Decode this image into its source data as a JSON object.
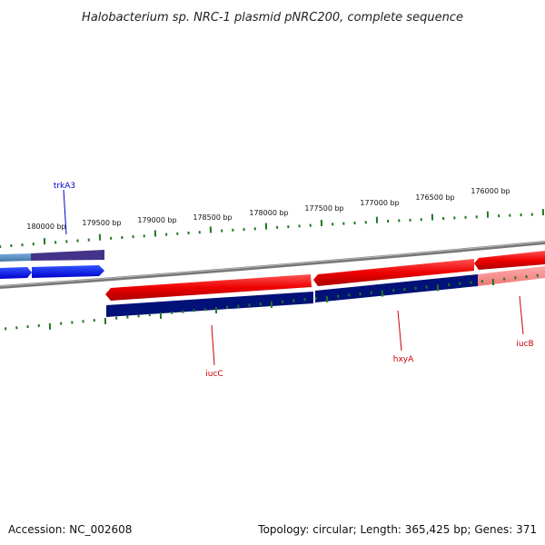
{
  "title": "Halobacterium sp. NRC-1 plasmid pNRC200, complete sequence",
  "footer": {
    "accession": "Accession: NC_002608",
    "summary": "Topology: circular; Length: 365,425 bp; Genes: 371"
  },
  "ruler": {
    "labels": [
      "180000 bp",
      "179500 bp",
      "179000 bp",
      "178500 bp",
      "178000 bp",
      "177500 bp",
      "177000 bp",
      "176500 bp",
      "176000 bp"
    ]
  },
  "genes": [
    {
      "name": "trkA3",
      "color": "#0000cc"
    },
    {
      "name": "iucC",
      "color": "#cc0000"
    },
    {
      "name": "hxyA",
      "color": "#cc0000"
    },
    {
      "name": "iucB",
      "color": "#cc0000"
    }
  ],
  "colors": {
    "forward_strand": "#ee1111",
    "reverse_strand": "#001177",
    "tick": "#227722",
    "backbone": "#888888"
  }
}
